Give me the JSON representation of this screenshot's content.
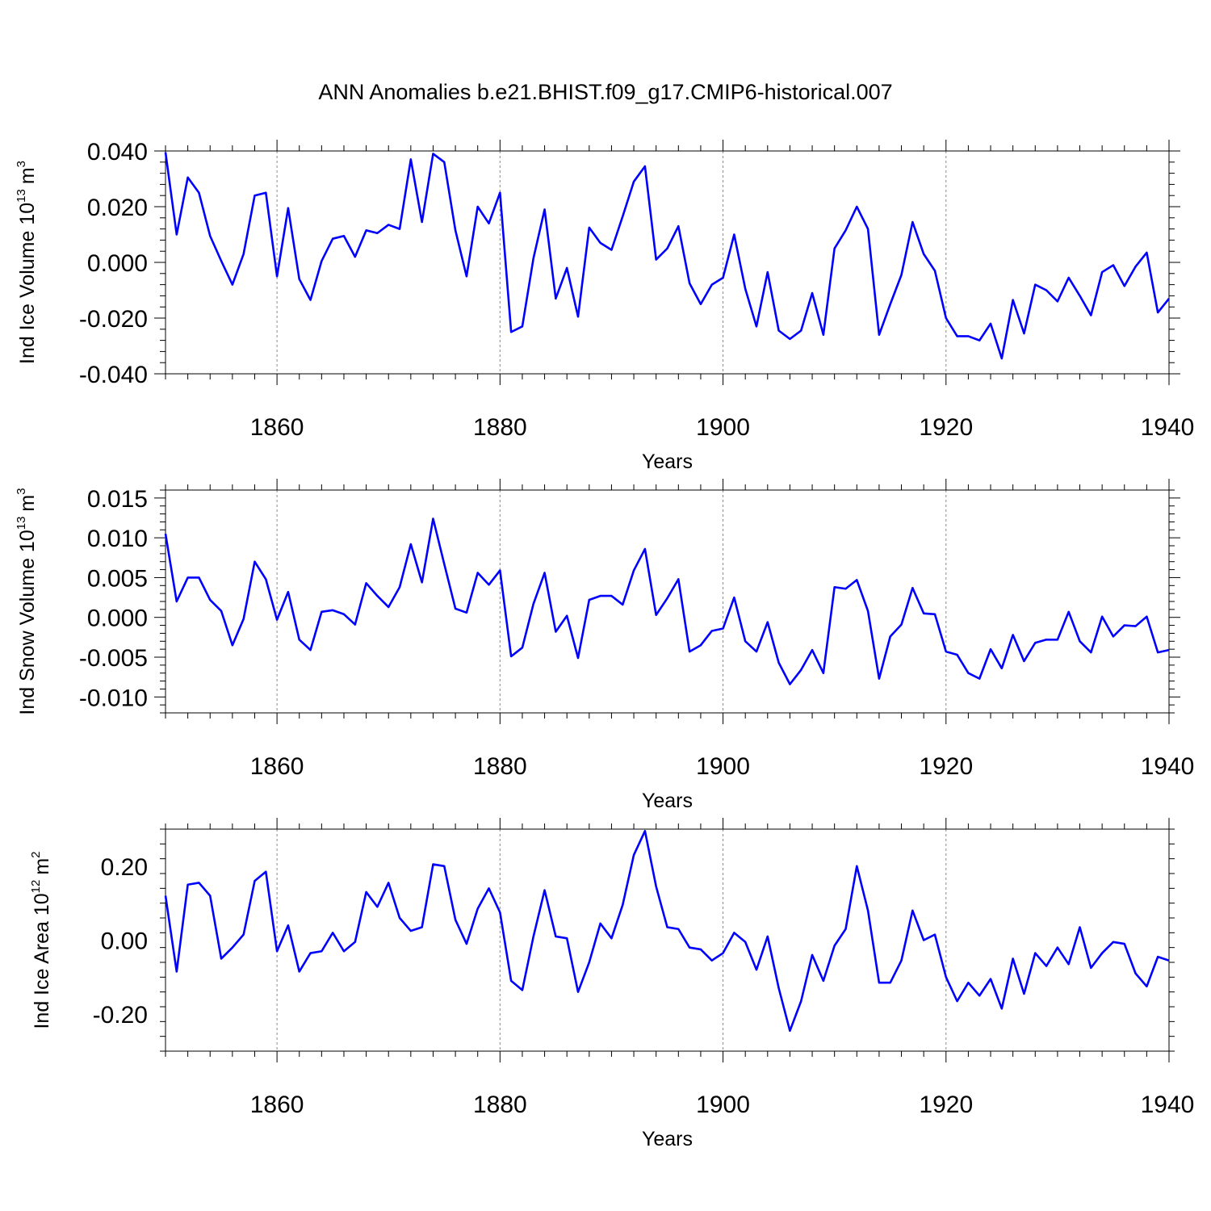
{
  "chart_data": {
    "type": "line",
    "title": "ANN Anomalies b.e21.BHIST.f09_g17.CMIP6-historical.007",
    "line_color": "#0000ff",
    "x": [
      1850,
      1851,
      1852,
      1853,
      1854,
      1855,
      1856,
      1857,
      1858,
      1859,
      1860,
      1861,
      1862,
      1863,
      1864,
      1865,
      1866,
      1867,
      1868,
      1869,
      1870,
      1871,
      1872,
      1873,
      1874,
      1875,
      1876,
      1877,
      1878,
      1879,
      1880,
      1881,
      1882,
      1883,
      1884,
      1885,
      1886,
      1887,
      1888,
      1889,
      1890,
      1891,
      1892,
      1893,
      1894,
      1895,
      1896,
      1897,
      1898,
      1899,
      1900,
      1901,
      1902,
      1903,
      1904,
      1905,
      1906,
      1907,
      1908,
      1909,
      1910,
      1911,
      1912,
      1913,
      1914,
      1915,
      1916,
      1917,
      1918,
      1919,
      1920,
      1921,
      1922,
      1923,
      1924,
      1925,
      1926,
      1927,
      1928,
      1929,
      1930,
      1931,
      1932,
      1933,
      1934,
      1935,
      1936,
      1937,
      1938,
      1939,
      1940
    ],
    "panels": [
      {
        "ylabel_main": "Ind Ice Volume 10",
        "ylabel_exp": "13",
        "ylabel_unit": "m",
        "ylabel_unit_exp": "3",
        "xlabel": "Years",
        "ylim": [
          -0.04,
          0.04
        ],
        "yticks": [
          -0.04,
          -0.02,
          0.0,
          0.02,
          0.04
        ],
        "ytick_labels": [
          "-0.040",
          "-0.020",
          "0.000",
          "0.020",
          "0.040"
        ],
        "xticks": [
          1860,
          1880,
          1900,
          1920,
          1940
        ],
        "xtick_labels": [
          "1860",
          "1880",
          "1900",
          "1920",
          "1940"
        ],
        "values": [
          0.0395,
          0.01,
          0.0305,
          0.025,
          0.0095,
          0.0005,
          -0.008,
          0.003,
          0.024,
          0.025,
          -0.005,
          0.0195,
          -0.006,
          -0.0135,
          0.0005,
          0.0085,
          0.0095,
          0.002,
          0.0115,
          0.0105,
          0.0135,
          0.012,
          0.037,
          0.0145,
          0.039,
          0.036,
          0.0115,
          -0.005,
          0.02,
          0.014,
          0.025,
          -0.025,
          -0.023,
          0.0015,
          0.019,
          -0.013,
          -0.002,
          -0.0195,
          0.0125,
          0.007,
          0.0045,
          0.0165,
          0.029,
          0.0345,
          0.001,
          0.005,
          0.013,
          -0.0075,
          -0.015,
          -0.008,
          -0.0055,
          0.01,
          -0.0095,
          -0.023,
          -0.0035,
          -0.0245,
          -0.0275,
          -0.0245,
          -0.011,
          -0.026,
          0.005,
          0.0115,
          0.02,
          0.012,
          -0.026,
          -0.015,
          -0.0045,
          0.0145,
          0.003,
          -0.003,
          -0.02,
          -0.0265,
          -0.0265,
          -0.028,
          -0.022,
          -0.0345,
          -0.0135,
          -0.0255,
          -0.008,
          -0.01,
          -0.014,
          -0.0055,
          -0.012,
          -0.019,
          -0.0035,
          -0.001,
          -0.0085,
          -0.0015,
          0.0035,
          -0.018,
          -0.013
        ]
      },
      {
        "ylabel_main": "Ind Snow Volume 10",
        "ylabel_exp": "13",
        "ylabel_unit": "m",
        "ylabel_unit_exp": "3",
        "xlabel": "Years",
        "ylim": [
          -0.012,
          0.016
        ],
        "yticks": [
          -0.01,
          -0.005,
          0.0,
          0.005,
          0.01,
          0.015
        ],
        "ytick_labels": [
          "-0.010",
          "-0.005",
          "0.000",
          "0.005",
          "0.010",
          "0.015"
        ],
        "xticks": [
          1860,
          1880,
          1900,
          1920,
          1940
        ],
        "xtick_labels": [
          "1860",
          "1880",
          "1900",
          "1920",
          "1940"
        ],
        "values": [
          0.0105,
          0.002,
          0.005,
          0.005,
          0.0022,
          0.0008,
          -0.0035,
          -0.0002,
          0.007,
          0.0048,
          -0.0003,
          0.0032,
          -0.0028,
          -0.0041,
          0.0007,
          0.0009,
          0.0004,
          -0.0009,
          0.0043,
          0.0027,
          0.0013,
          0.0038,
          0.0092,
          0.0044,
          0.0124,
          0.0067,
          0.0011,
          0.0006,
          0.0056,
          0.0041,
          0.0059,
          -0.0049,
          -0.0038,
          0.0017,
          0.0056,
          -0.0018,
          0.0002,
          -0.0051,
          0.0022,
          0.0027,
          0.0027,
          0.0016,
          0.0059,
          0.0086,
          0.0003,
          0.0024,
          0.0048,
          -0.0043,
          -0.0035,
          -0.0017,
          -0.0014,
          0.0025,
          -0.003,
          -0.0043,
          -0.0006,
          -0.0057,
          -0.0084,
          -0.0066,
          -0.0041,
          -0.007,
          0.0038,
          0.0036,
          0.0047,
          0.0008,
          -0.0077,
          -0.0024,
          -0.0009,
          0.0037,
          0.0005,
          0.0004,
          -0.0043,
          -0.0047,
          -0.007,
          -0.0077,
          -0.004,
          -0.0064,
          -0.0022,
          -0.0055,
          -0.0032,
          -0.0028,
          -0.0028,
          0.0007,
          -0.003,
          -0.0044,
          0.0001,
          -0.0024,
          -0.001,
          -0.0011,
          0.0001,
          -0.0044,
          -0.0041
        ]
      },
      {
        "ylabel_main": "Ind Ice Area 10",
        "ylabel_exp": "12",
        "ylabel_unit": "m",
        "ylabel_unit_exp": "2",
        "xlabel": "Years",
        "ylim": [
          -0.3,
          0.3
        ],
        "yticks": [
          -0.2,
          0.0,
          0.2
        ],
        "ytick_labels": [
          "-0.20",
          "0.00",
          "0.20"
        ],
        "xticks": [
          1860,
          1880,
          1900,
          1920,
          1940
        ],
        "xtick_labels": [
          "1860",
          "1880",
          "1900",
          "1920",
          "1940"
        ],
        "values": [
          0.12,
          -0.085,
          0.15,
          0.155,
          0.12,
          -0.05,
          -0.02,
          0.015,
          0.16,
          0.185,
          -0.03,
          0.04,
          -0.085,
          -0.035,
          -0.03,
          0.02,
          -0.03,
          -0.005,
          0.13,
          0.09,
          0.155,
          0.06,
          0.025,
          0.035,
          0.205,
          0.2,
          0.055,
          -0.01,
          0.085,
          0.14,
          0.075,
          -0.11,
          -0.135,
          0.01,
          0.135,
          0.01,
          0.005,
          -0.14,
          -0.06,
          0.045,
          0.005,
          0.095,
          0.23,
          0.295,
          0.145,
          0.035,
          0.03,
          -0.02,
          -0.025,
          -0.055,
          -0.035,
          0.02,
          -0.005,
          -0.08,
          0.01,
          -0.13,
          -0.245,
          -0.165,
          -0.04,
          -0.11,
          -0.015,
          0.03,
          0.2,
          0.08,
          -0.115,
          -0.115,
          -0.055,
          0.08,
          0.0,
          0.015,
          -0.1,
          -0.165,
          -0.115,
          -0.15,
          -0.105,
          -0.185,
          -0.05,
          -0.145,
          -0.035,
          -0.07,
          -0.02,
          -0.065,
          0.035,
          -0.075,
          -0.035,
          -0.005,
          -0.01,
          -0.09,
          -0.125,
          -0.045,
          -0.055
        ]
      }
    ]
  }
}
